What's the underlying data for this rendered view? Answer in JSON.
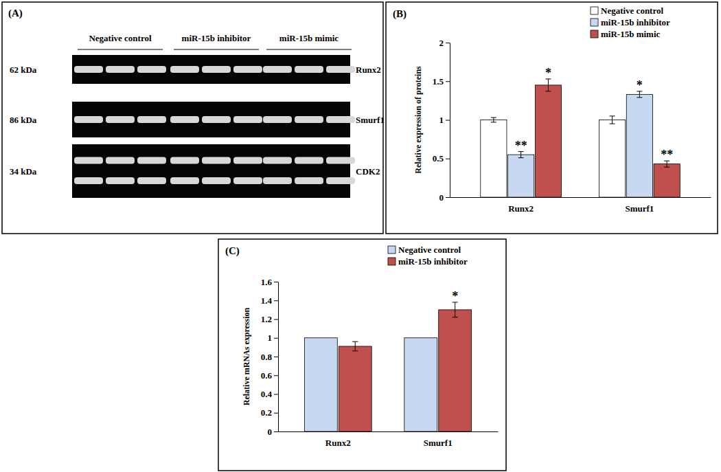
{
  "blot": {
    "panel": "(A)",
    "groups": [
      "Negative control",
      "miR-15b inhibitor",
      "miR-15b mimic"
    ],
    "rows": [
      {
        "label": "Runx2",
        "size": "62 kDa"
      },
      {
        "label": "Smurf1",
        "size": "86 kDa"
      },
      {
        "label": "CDK2",
        "size": "34 kDa"
      }
    ]
  },
  "chart_data": [
    {
      "type": "bar",
      "panel": "(B)",
      "categories": [
        "Runx2",
        "Smurf1"
      ],
      "y_label": "Relative expression of proteins",
      "ylim": [
        0,
        2
      ],
      "yticks": [
        0,
        0.5,
        1,
        1.5,
        2
      ],
      "legend": "top-right",
      "series": [
        {
          "name": "Negative control",
          "color": "#ffffff",
          "values": [
            1,
            1
          ],
          "errors": [
            0.03,
            0.05
          ],
          "significance": [
            null,
            null
          ]
        },
        {
          "name": "miR-15b inhibitor",
          "color": "#c6d9f1",
          "values": [
            0.55,
            1.33
          ],
          "errors": [
            0.04,
            0.04
          ],
          "significance": [
            "**",
            "*"
          ]
        },
        {
          "name": "miR-15b mimic",
          "color": "#c0504d",
          "values": [
            1.45,
            0.43
          ],
          "errors": [
            0.08,
            0.04
          ],
          "significance": [
            "*",
            "**"
          ]
        }
      ]
    },
    {
      "type": "bar",
      "panel": "(C)",
      "categories": [
        "Runx2",
        "Smurf1"
      ],
      "y_label": "Relative mRNAs expression",
      "ylim": [
        0,
        1.6
      ],
      "yticks": [
        0,
        0.2,
        0.4,
        0.6,
        0.8,
        1,
        1.2,
        1.4,
        1.6
      ],
      "legend": "top-right",
      "series": [
        {
          "name": "Negative control",
          "color": "#c6d9f1",
          "values": [
            1,
            1
          ],
          "significance": [
            null,
            null
          ]
        },
        {
          "name": "miR-15b inhibitor",
          "color": "#c0504d",
          "values": [
            0.91,
            1.3
          ],
          "errors": [
            0.05,
            0.08
          ],
          "significance": [
            null,
            "*"
          ]
        }
      ]
    }
  ]
}
